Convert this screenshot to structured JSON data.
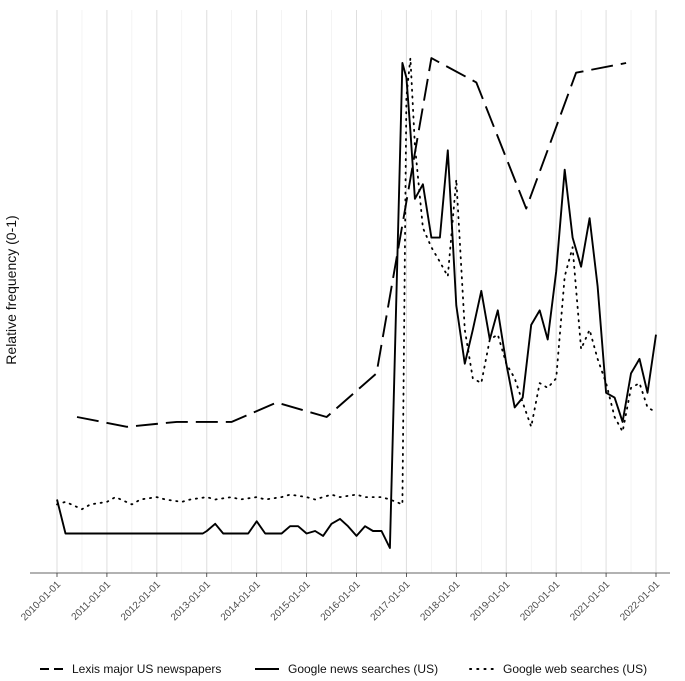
{
  "chart_data": {
    "type": "line",
    "title": "",
    "xlabel": "",
    "ylabel": "Relative frequency (0-1)",
    "x_ticks": [
      "2010-01-01",
      "2011-01-01",
      "2012-01-01",
      "2013-01-01",
      "2014-01-01",
      "2015-01-01",
      "2016-01-01",
      "2017-01-01",
      "2018-01-01",
      "2019-01-01",
      "2020-01-01",
      "2021-01-01",
      "2022-01-01"
    ],
    "xlim": [
      2009.8,
      2022.5
    ],
    "ylim": [
      -0.04,
      1.07
    ],
    "grid": "vertical",
    "legend_position": "bottom",
    "series": [
      {
        "name": "Lexis major US newspapers",
        "style": "dashed",
        "x": [
          2010.4,
          2011.4,
          2012.4,
          2013.5,
          2014.4,
          2015.4,
          2016.4,
          2017.5,
          2018.4,
          2019.4,
          2020.4,
          2021.4
        ],
        "y": [
          0.26,
          0.24,
          0.25,
          0.25,
          0.29,
          0.26,
          0.35,
          1.0,
          0.95,
          0.69,
          0.97,
          0.99
        ]
      },
      {
        "name": "Google news searches (US)",
        "style": "solid",
        "x": [
          2010.0,
          2010.17,
          2010.5,
          2011.0,
          2011.5,
          2012.0,
          2012.5,
          2012.92,
          2013.0,
          2013.17,
          2013.33,
          2013.5,
          2013.67,
          2013.83,
          2014.0,
          2014.17,
          2014.33,
          2014.5,
          2014.67,
          2014.83,
          2015.0,
          2015.17,
          2015.33,
          2015.5,
          2015.67,
          2015.83,
          2016.0,
          2016.17,
          2016.33,
          2016.5,
          2016.67,
          2016.92,
          2017.0,
          2017.08,
          2017.17,
          2017.33,
          2017.5,
          2017.67,
          2017.83,
          2018.0,
          2018.17,
          2018.33,
          2018.5,
          2018.67,
          2018.83,
          2019.0,
          2019.17,
          2019.33,
          2019.5,
          2019.67,
          2019.83,
          2020.0,
          2020.17,
          2020.33,
          2020.5,
          2020.67,
          2020.83,
          2021.0,
          2021.17,
          2021.33,
          2021.5,
          2021.67,
          2021.83,
          2022.0
        ],
        "y": [
          0.09,
          0.02,
          0.02,
          0.02,
          0.02,
          0.02,
          0.02,
          0.02,
          0.025,
          0.04,
          0.02,
          0.02,
          0.02,
          0.02,
          0.045,
          0.02,
          0.02,
          0.02,
          0.035,
          0.035,
          0.02,
          0.025,
          0.015,
          0.04,
          0.05,
          0.035,
          0.015,
          0.035,
          0.025,
          0.025,
          -0.01,
          0.99,
          0.96,
          0.85,
          0.71,
          0.74,
          0.63,
          0.63,
          0.81,
          0.49,
          0.37,
          0.44,
          0.52,
          0.42,
          0.48,
          0.37,
          0.28,
          0.3,
          0.45,
          0.48,
          0.42,
          0.56,
          0.77,
          0.63,
          0.57,
          0.67,
          0.53,
          0.31,
          0.3,
          0.25,
          0.35,
          0.38,
          0.31,
          0.43
        ]
      },
      {
        "name": "Google web searches (US)",
        "style": "dotted",
        "x": [
          2010.0,
          2010.17,
          2010.5,
          2010.67,
          2011.0,
          2011.17,
          2011.5,
          2011.67,
          2012.0,
          2012.17,
          2012.5,
          2012.67,
          2013.0,
          2013.17,
          2013.5,
          2013.67,
          2014.0,
          2014.17,
          2014.5,
          2014.67,
          2015.0,
          2015.17,
          2015.5,
          2015.67,
          2016.0,
          2016.17,
          2016.5,
          2016.67,
          2016.92,
          2017.0,
          2017.08,
          2017.17,
          2017.33,
          2017.5,
          2017.67,
          2017.83,
          2018.0,
          2018.17,
          2018.33,
          2018.5,
          2018.67,
          2018.83,
          2019.0,
          2019.17,
          2019.33,
          2019.5,
          2019.67,
          2019.83,
          2020.0,
          2020.17,
          2020.33,
          2020.5,
          2020.67,
          2020.83,
          2021.0,
          2021.17,
          2021.33,
          2021.5,
          2021.67,
          2021.83,
          2022.0
        ],
        "y": [
          0.08,
          0.085,
          0.07,
          0.08,
          0.085,
          0.095,
          0.08,
          0.09,
          0.095,
          0.09,
          0.085,
          0.09,
          0.095,
          0.09,
          0.095,
          0.09,
          0.095,
          0.09,
          0.095,
          0.1,
          0.095,
          0.09,
          0.1,
          0.095,
          0.1,
          0.095,
          0.095,
          0.09,
          0.08,
          0.92,
          1.0,
          0.82,
          0.65,
          0.61,
          0.58,
          0.55,
          0.75,
          0.44,
          0.34,
          0.33,
          0.42,
          0.43,
          0.37,
          0.34,
          0.29,
          0.24,
          0.33,
          0.32,
          0.34,
          0.55,
          0.61,
          0.4,
          0.44,
          0.38,
          0.33,
          0.26,
          0.23,
          0.32,
          0.33,
          0.28,
          0.27
        ]
      }
    ]
  }
}
